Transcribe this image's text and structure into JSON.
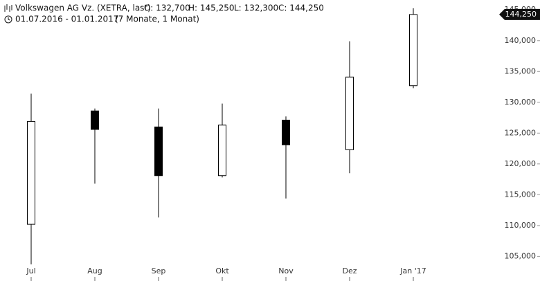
{
  "chart_data": {
    "type": "candlestick",
    "title": "Volkswagen AG Vz. (XETRA, last)",
    "ohlc_labels": [
      "O: 132,700",
      "H: 145,250",
      "L: 132,300",
      "C: 144,250"
    ],
    "period": "01.07.2016 - 01.01.2017",
    "interval": "(7 Monate, 1 Monat)",
    "categories": [
      "Jul",
      "Aug",
      "Sep",
      "Okt",
      "Nov",
      "Dez",
      "Jan '17"
    ],
    "open": [
      110200,
      128600,
      126000,
      118100,
      127100,
      122300,
      132700
    ],
    "high": [
      131400,
      129000,
      129000,
      129800,
      127700,
      139900,
      145250
    ],
    "low": [
      103700,
      116800,
      111300,
      117800,
      114400,
      118500,
      132300
    ],
    "close": [
      126900,
      125600,
      118100,
      126300,
      123100,
      134100,
      144250
    ],
    "up_color": "#ffffff",
    "down_color": "#000000",
    "last_price": {
      "value": 144250,
      "label": "144,250"
    },
    "ylim": [
      101000,
      146600
    ],
    "yticks": [
      {
        "value": 105000,
        "label": "105,000"
      },
      {
        "value": 110000,
        "label": "110,000"
      },
      {
        "value": 115000,
        "label": "115,000"
      },
      {
        "value": 120000,
        "label": "120,000"
      },
      {
        "value": 125000,
        "label": "125,000"
      },
      {
        "value": 130000,
        "label": "130,000"
      },
      {
        "value": 135000,
        "label": "135,000"
      },
      {
        "value": 140000,
        "label": "140,000"
      },
      {
        "value": 145000,
        "label": "145,000"
      }
    ]
  }
}
